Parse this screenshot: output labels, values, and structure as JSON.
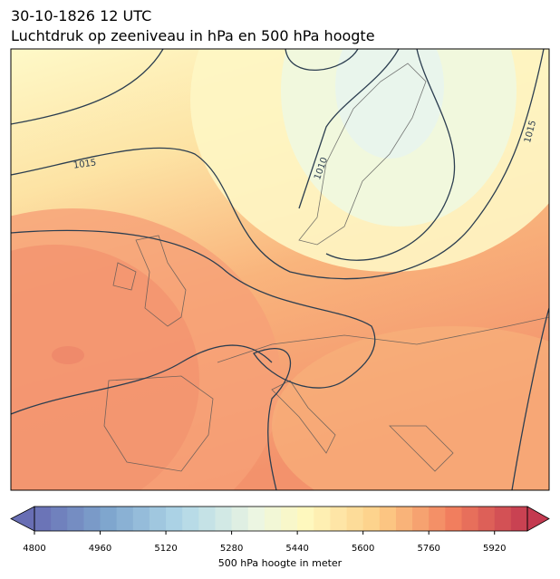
{
  "header": {
    "date": "30-10-1826 12 UTC",
    "title": "Luchtdruk op zeeniveau in hPa en 500 hPa hoogte"
  },
  "map": {
    "contour_labels": [
      "1015",
      "1010",
      "1015"
    ]
  },
  "colorbar": {
    "label": "500 hPa hoogte in meter",
    "range": [
      4800,
      6000
    ],
    "step": 40,
    "ticks": [
      4800,
      4960,
      5120,
      5280,
      5440,
      5600,
      5760,
      5920
    ]
  }
}
